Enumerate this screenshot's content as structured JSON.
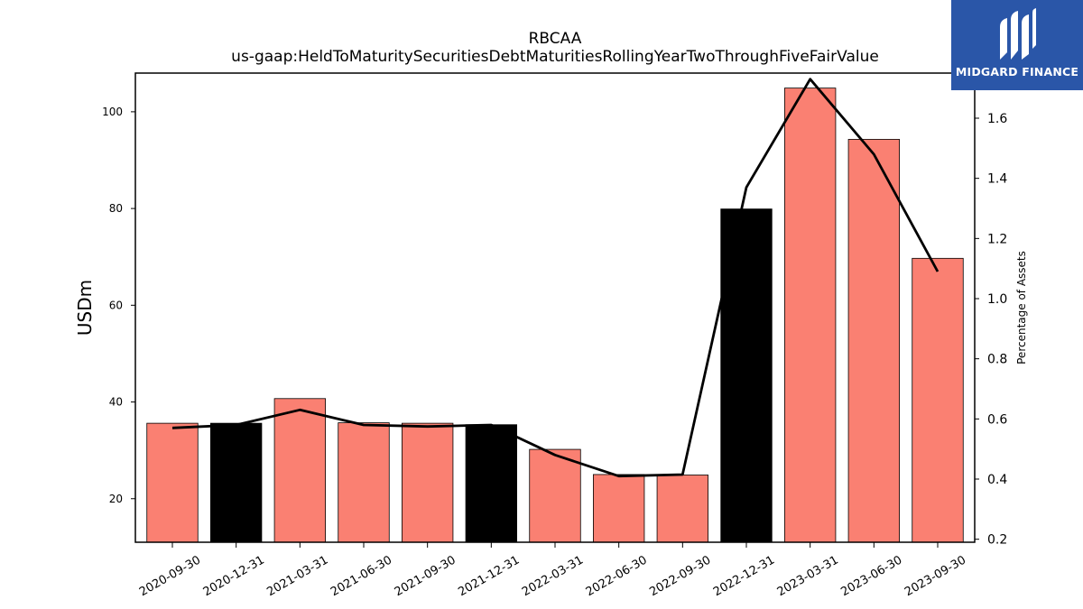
{
  "chart_data": {
    "type": "bar",
    "title": "RBCAA",
    "subtitle": "us-gaap:HeldToMaturitySecuritiesDebtMaturitiesRollingYearTwoThroughFiveFairValue",
    "ylabel": "USDm",
    "y2label": "Percentage of Assets",
    "categories": [
      "2020-09-30",
      "2020-12-31",
      "2021-03-31",
      "2021-06-30",
      "2021-09-30",
      "2021-12-31",
      "2022-03-31",
      "2022-06-30",
      "2022-09-30",
      "2022-12-31",
      "2023-03-31",
      "2023-06-30",
      "2023-09-30"
    ],
    "bar_values": [
      35.6,
      35.6,
      40.7,
      35.7,
      35.6,
      35.3,
      30.2,
      25.0,
      24.9,
      79.9,
      104.9,
      94.3,
      69.7
    ],
    "bar_colors": [
      "#fa8072",
      "#000000",
      "#fa8072",
      "#fa8072",
      "#fa8072",
      "#000000",
      "#fa8072",
      "#fa8072",
      "#fa8072",
      "#000000",
      "#fa8072",
      "#fa8072",
      "#fa8072"
    ],
    "line_values": [
      0.57,
      0.58,
      0.63,
      0.58,
      0.575,
      0.58,
      0.48,
      0.41,
      0.415,
      1.37,
      1.73,
      1.48,
      1.09
    ],
    "line_color": "#000000",
    "ylim": [
      11,
      108
    ],
    "y2lim": [
      0.19,
      1.75
    ],
    "yticks": [
      20,
      40,
      60,
      80,
      100
    ],
    "y2ticks": [
      "0.2",
      "0.4",
      "0.6",
      "0.8",
      "1.0",
      "1.2",
      "1.4",
      "1.6"
    ]
  },
  "logo": {
    "text": "MIDGARD FINANCE",
    "bg": "#2a56a8"
  }
}
